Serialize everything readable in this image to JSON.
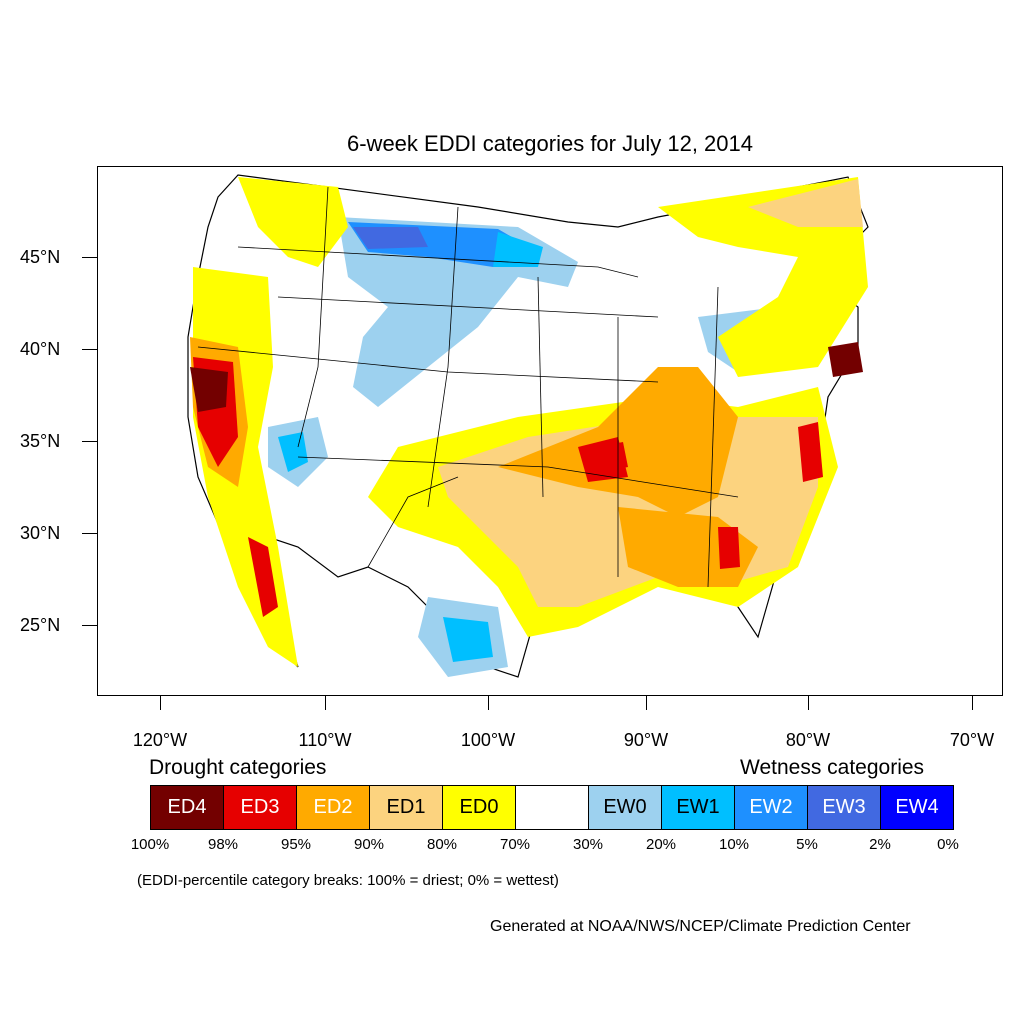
{
  "title": "6-week EDDI categories for July 12, 2014",
  "lat_labels": [
    "45°N",
    "40°N",
    "35°N",
    "30°N",
    "25°N"
  ],
  "lon_labels": [
    "120°W",
    "110°W",
    "100°W",
    "90°W",
    "80°W",
    "70°W"
  ],
  "legend": {
    "drought_heading": "Drought categories",
    "wetness_heading": "Wetness categories",
    "categories": [
      {
        "label": "ED4",
        "color": "#730000",
        "text_color": "#ffffff"
      },
      {
        "label": "ED3",
        "color": "#e60000",
        "text_color": "#ffffff"
      },
      {
        "label": "ED2",
        "color": "#ffaa00",
        "text_color": "#ffffff"
      },
      {
        "label": "ED1",
        "color": "#fcd37f",
        "text_color": "#000000"
      },
      {
        "label": "ED0",
        "color": "#ffff00",
        "text_color": "#000000"
      },
      {
        "label": "",
        "color": "#ffffff",
        "text_color": "#000000"
      },
      {
        "label": "EW0",
        "color": "#9dd1ef",
        "text_color": "#000000"
      },
      {
        "label": "EW1",
        "color": "#00bfff",
        "text_color": "#000000"
      },
      {
        "label": "EW2",
        "color": "#1e90ff",
        "text_color": "#ffffff"
      },
      {
        "label": "EW3",
        "color": "#4169e1",
        "text_color": "#ffffff"
      },
      {
        "label": "EW4",
        "color": "#0000ff",
        "text_color": "#ffffff"
      }
    ],
    "percentiles": [
      "100%",
      "98%",
      "95%",
      "90%",
      "80%",
      "70%",
      "30%",
      "20%",
      "10%",
      "5%",
      "2%",
      "0%"
    ]
  },
  "note": "(EDDI-percentile category breaks: 100% = driest; 0% = wettest)",
  "credit": "Generated at NOAA/NWS/NCEP/Climate Prediction Center"
}
